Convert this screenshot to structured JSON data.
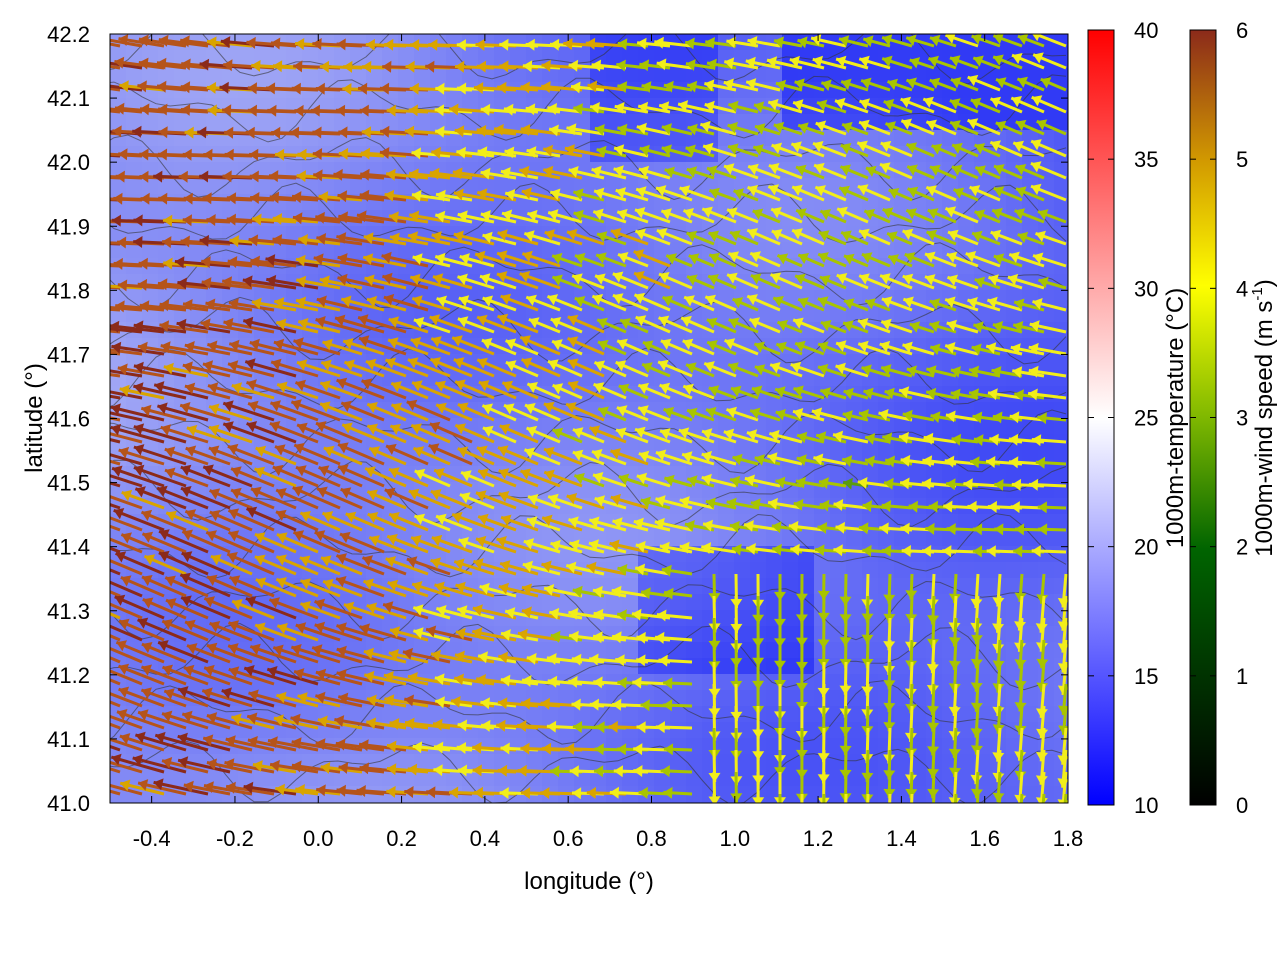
{
  "chart_data": {
    "type": "heatmap",
    "title": "",
    "xlabel": "longitude (°)",
    "ylabel": "latitude (°)",
    "xlim": [
      -0.5,
      1.8
    ],
    "ylim": [
      41.0,
      42.2
    ],
    "x_ticks": [
      "-0.4",
      "-0.2",
      "0.0",
      "0.2",
      "0.4",
      "0.6",
      "0.8",
      "1.0",
      "1.2",
      "1.4",
      "1.6",
      "1.8"
    ],
    "y_ticks": [
      "41.0",
      "41.1",
      "41.2",
      "41.3",
      "41.4",
      "41.5",
      "41.6",
      "41.7",
      "41.8",
      "41.9",
      "42.0",
      "42.1",
      "42.2"
    ],
    "overlays": [
      "wind vectors",
      "terrain contours"
    ],
    "colorbars": [
      {
        "label": "1000m-temperature (°C)",
        "range": [
          10,
          40
        ],
        "tick_labels": [
          "10",
          "15",
          "20",
          "25",
          "30",
          "35",
          "40"
        ],
        "colors": [
          "#0000ff",
          "#ffffff",
          "#ff0000"
        ]
      },
      {
        "label_main": "1000m-wind speed (m s",
        "label_sup": "-1",
        "label_end": ")",
        "range": [
          0,
          6
        ],
        "tick_labels": [
          "0",
          "1",
          "2",
          "3",
          "4",
          "5",
          "6"
        ],
        "colors": [
          "#000000",
          "#006400",
          "#7fb800",
          "#ffff00",
          "#d29a00",
          "#8b2a1a"
        ]
      }
    ]
  }
}
